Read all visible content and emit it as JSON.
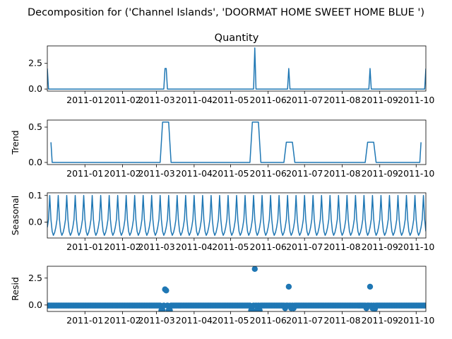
{
  "figure": {
    "suptitle": "Decomposition for ('Channel Islands', 'DOORMAT HOME SWEET HOME BLUE ')",
    "line_color": "#1f77b4"
  },
  "chart_data": [
    {
      "type": "line",
      "title": "Quantity",
      "ylabel": "",
      "xlim": [
        "2010-12-01",
        "2011-10-09"
      ],
      "ylim": [
        -0.2,
        4.2
      ],
      "yticks": [
        0.0,
        2.5
      ],
      "ytick_labels": [
        "0.0",
        "2.5"
      ],
      "xtick_labels": [
        "2011-01",
        "2011-02",
        "2011-03",
        "2011-04",
        "2011-05",
        "2011-06",
        "2011-07",
        "2011-08",
        "2011-09",
        "2011-10"
      ],
      "series": [
        {
          "x": [
            "2010-12-01",
            "2010-12-02",
            "2011-03-07",
            "2011-03-08",
            "2011-03-09",
            "2011-03-10",
            "2011-05-20",
            "2011-05-21",
            "2011-05-22",
            "2011-06-17",
            "2011-06-18",
            "2011-06-19",
            "2011-08-23",
            "2011-08-24",
            "2011-08-25",
            "2011-10-08",
            "2011-10-09"
          ],
          "y": [
            2,
            0,
            0,
            2,
            2,
            0,
            0,
            4,
            0,
            0,
            2,
            0,
            0,
            2,
            0,
            0,
            2
          ]
        }
      ]
    },
    {
      "type": "line",
      "title": "",
      "ylabel": "Trend",
      "xlim": [
        "2010-12-01",
        "2011-10-09"
      ],
      "ylim": [
        -0.03,
        0.6
      ],
      "yticks": [
        0.0,
        0.5
      ],
      "ytick_labels": [
        "0.0",
        "0.5"
      ],
      "xtick_labels": [
        "2011-01",
        "2011-02",
        "2011-03",
        "2011-04",
        "2011-05",
        "2011-06",
        "2011-07",
        "2011-08",
        "2011-09",
        "2011-10"
      ],
      "series": [
        {
          "x": [
            "2010-12-04",
            "2010-12-05",
            "2011-03-04",
            "2011-03-06",
            "2011-03-11",
            "2011-03-13",
            "2011-05-17",
            "2011-05-19",
            "2011-05-24",
            "2011-05-26",
            "2011-06-14",
            "2011-06-16",
            "2011-06-21",
            "2011-06-23",
            "2011-08-20",
            "2011-08-22",
            "2011-08-27",
            "2011-08-29",
            "2011-10-04",
            "2011-10-05"
          ],
          "y": [
            0.286,
            0,
            0,
            0.571,
            0.571,
            0,
            0,
            0.571,
            0.571,
            0,
            0,
            0.286,
            0.286,
            0,
            0,
            0.286,
            0.286,
            0,
            0,
            0.286
          ]
        }
      ]
    },
    {
      "type": "line",
      "title": "",
      "ylabel": "Seasonal",
      "xlim": [
        "2010-12-01",
        "2011-10-09"
      ],
      "ylim": [
        -0.06,
        0.11
      ],
      "yticks": [
        0.0,
        0.1
      ],
      "ytick_labels": [
        "0.0",
        "0.1"
      ],
      "xtick_labels": [
        "2011-01",
        "2011-02",
        "2011-03",
        "2011-04",
        "2011-05",
        "2011-06",
        "2011-07",
        "2011-08",
        "2011-09",
        "2011-10"
      ],
      "period_days": 7,
      "weekly_pattern": [
        -0.02,
        0.01,
        0.1,
        0.01,
        -0.035,
        -0.05,
        -0.04
      ]
    },
    {
      "type": "scatter",
      "title": "",
      "ylabel": "Resid",
      "xlim": [
        "2010-12-01",
        "2011-10-09"
      ],
      "ylim": [
        -0.6,
        3.6
      ],
      "yticks": [
        0.0,
        2.5
      ],
      "ytick_labels": [
        "0.0",
        "2.5"
      ],
      "xtick_labels": [
        "2011-01",
        "2011-02",
        "2011-03",
        "2011-04",
        "2011-05",
        "2011-06",
        "2011-07",
        "2011-08",
        "2011-09",
        "2011-10"
      ],
      "baseline": 0,
      "outliers": [
        {
          "x": "2011-03-08",
          "y": 1.45
        },
        {
          "x": "2011-03-09",
          "y": 1.35
        },
        {
          "x": "2011-03-05",
          "y": -0.5
        },
        {
          "x": "2011-03-06",
          "y": -0.5
        },
        {
          "x": "2011-03-11",
          "y": -0.5
        },
        {
          "x": "2011-03-12",
          "y": -0.5
        },
        {
          "x": "2011-05-21",
          "y": 3.35
        },
        {
          "x": "2011-05-18",
          "y": -0.5
        },
        {
          "x": "2011-05-19",
          "y": -0.5
        },
        {
          "x": "2011-05-23",
          "y": -0.5
        },
        {
          "x": "2011-05-25",
          "y": -0.5
        },
        {
          "x": "2011-06-18",
          "y": 1.7
        },
        {
          "x": "2011-06-15",
          "y": -0.3
        },
        {
          "x": "2011-06-20",
          "y": -0.3
        },
        {
          "x": "2011-06-22",
          "y": -0.3
        },
        {
          "x": "2011-08-24",
          "y": 1.7
        },
        {
          "x": "2011-08-21",
          "y": -0.3
        },
        {
          "x": "2011-08-26",
          "y": -0.3
        },
        {
          "x": "2011-08-28",
          "y": -0.35
        }
      ]
    }
  ]
}
